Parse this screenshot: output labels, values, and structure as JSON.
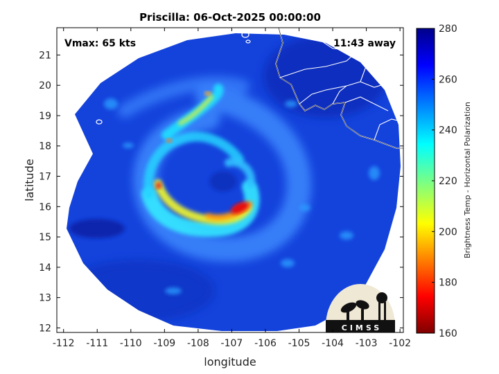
{
  "title": "Priscilla: 06-Oct-2025 00:00:00",
  "annotations": {
    "vmax": "Vmax: 65 kts",
    "time_away": "11:43 away"
  },
  "axes": {
    "xlabel": "longitude",
    "ylabel": "latitude",
    "x_ticks": [
      "-112",
      "-111",
      "-110",
      "-109",
      "-108",
      "-107",
      "-106",
      "-105",
      "-104",
      "-103",
      "-102"
    ],
    "y_ticks": [
      "12",
      "13",
      "14",
      "15",
      "16",
      "17",
      "18",
      "19",
      "20",
      "21"
    ],
    "xlim": [
      -112.2,
      -101.9
    ],
    "ylim": [
      11.85,
      21.9
    ]
  },
  "colorbar": {
    "label": "Brightness Temp - Horizontal Polarization",
    "ticks": [
      "280",
      "260",
      "240",
      "220",
      "200",
      "180",
      "160"
    ],
    "range": [
      160,
      280
    ],
    "colormap": "jet"
  },
  "colors": {
    "field_background": "#1240d8",
    "coastline": "#ffffff",
    "frame": "#000000"
  },
  "storm_center": {
    "lon": -107.1,
    "lat": 16.9
  },
  "logo": {
    "text": "CIMSS"
  },
  "chart_data": {
    "type": "heatmap",
    "title": "Priscilla: 06-Oct-2025 00:00:00",
    "xlabel": "longitude",
    "ylabel": "latitude",
    "xlim": [
      -112.2,
      -101.9
    ],
    "ylim": [
      11.85,
      21.9
    ],
    "colorbar_range": [
      160,
      280
    ],
    "colorbar_label": "Brightness Temp - Horizontal Polarization",
    "grid": false,
    "legend": "none",
    "values_note": "Brightness temperature field; cold (red/yellow, ~160-200 K) spiral rain bands wrapping around storm center near 107W 16.9N, warm (~255-275 K) background."
  }
}
